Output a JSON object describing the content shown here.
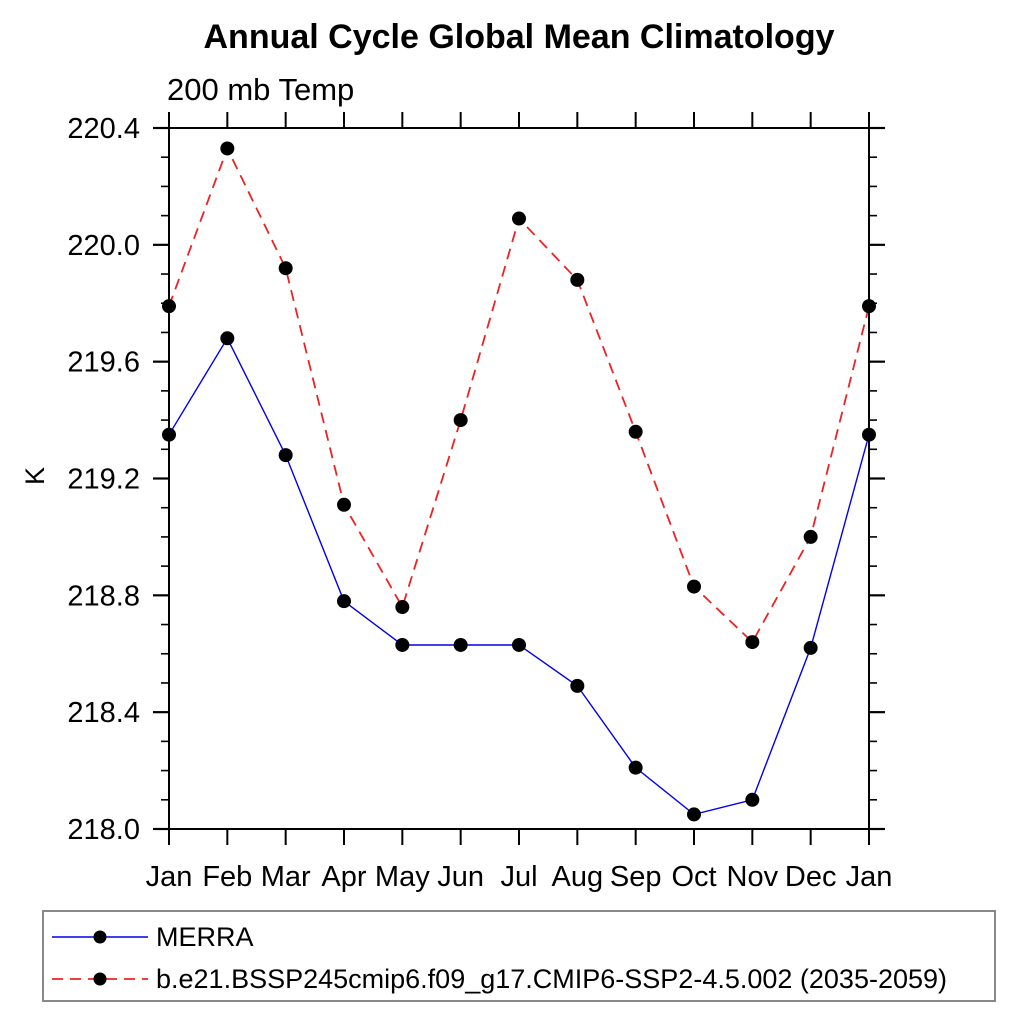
{
  "title": "Annual Cycle Global Mean Climatology",
  "subtitle": "200 mb Temp",
  "ylabel": "K",
  "colors": {
    "merra_line": "#0000ee",
    "model_line": "#ee2222",
    "marker": "#000000",
    "axis": "#000000",
    "legend_border": "#888888"
  },
  "chart_data": {
    "type": "line",
    "title": "Annual Cycle Global Mean Climatology",
    "subtitle": "200 mb Temp",
    "xlabel": "",
    "ylabel": "K",
    "categories": [
      "Jan",
      "Feb",
      "Mar",
      "Apr",
      "May",
      "Jun",
      "Jul",
      "Aug",
      "Sep",
      "Oct",
      "Nov",
      "Dec",
      "Jan"
    ],
    "ylim": [
      218.0,
      220.4
    ],
    "ytick_major": 0.4,
    "ytick_minor": 0.1,
    "grid": false,
    "legend_position": "bottom-left-box",
    "marker": "filled-circle",
    "series": [
      {
        "name": "MERRA",
        "color": "#0000ee",
        "line_style": "solid",
        "values": [
          219.35,
          219.68,
          219.28,
          218.78,
          218.63,
          218.63,
          218.63,
          218.49,
          218.21,
          218.05,
          218.1,
          218.62,
          219.35
        ]
      },
      {
        "name": "b.e21.BSSP245cmip6.f09_g17.CMIP6-SSP2-4.5.002 (2035-2059)",
        "color": "#ee2222",
        "line_style": "dashed",
        "values": [
          219.79,
          220.33,
          219.92,
          219.11,
          218.76,
          219.4,
          220.09,
          219.88,
          219.36,
          218.83,
          218.64,
          219.0,
          219.79
        ]
      }
    ]
  }
}
